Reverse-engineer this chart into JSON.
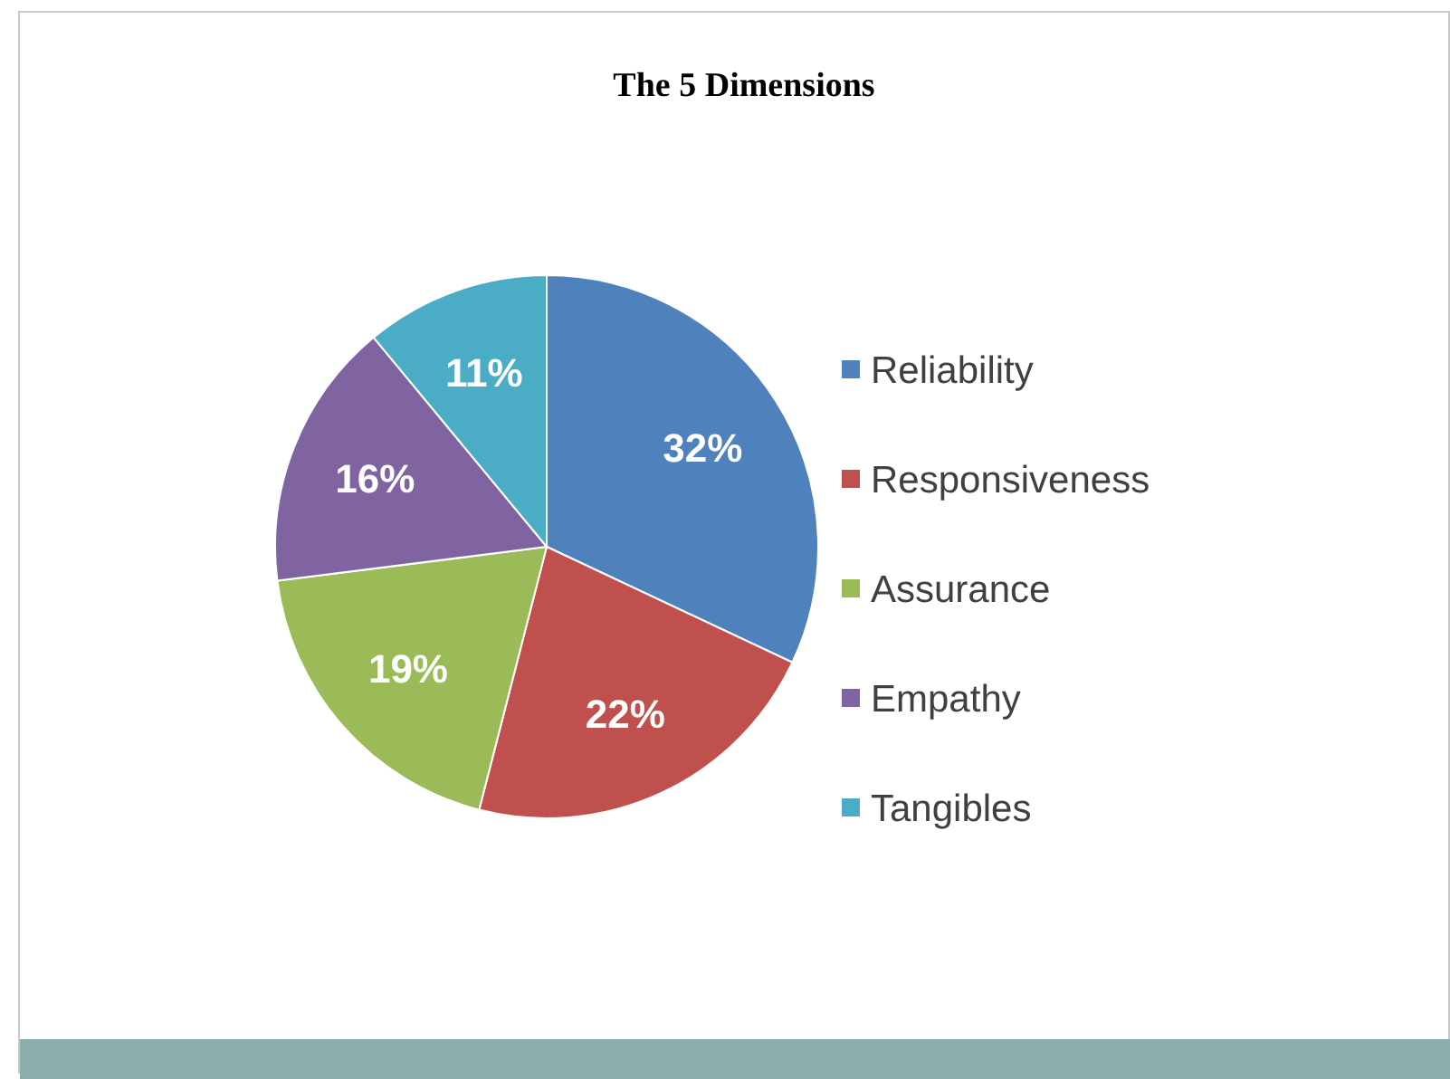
{
  "chart_data": {
    "type": "pie",
    "title": "The 5 Dimensions",
    "categories": [
      "Reliability",
      "Responsiveness",
      "Assurance",
      "Empathy",
      "Tangibles"
    ],
    "values": [
      32,
      22,
      19,
      16,
      11
    ],
    "colors": [
      "#4f81bd",
      "#c0504d",
      "#9bbb59",
      "#8064a2",
      "#4bacc6"
    ],
    "value_labels": [
      "32%",
      "22%",
      "19%",
      "16%",
      "11%"
    ],
    "legend": "right"
  }
}
